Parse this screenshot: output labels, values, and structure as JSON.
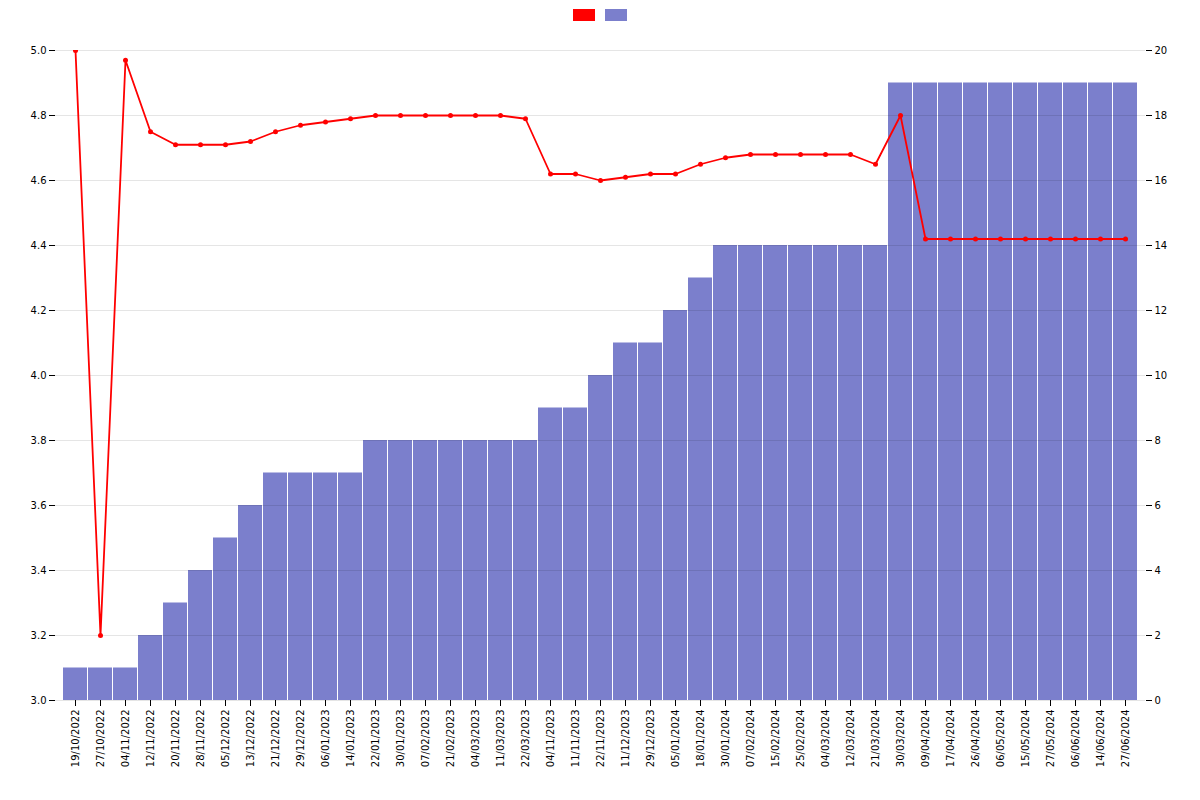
{
  "chart_data": {
    "type": "bar",
    "categories": [
      "19/10/2022",
      "27/10/2022",
      "04/11/2022",
      "12/11/2022",
      "20/11/2022",
      "28/11/2022",
      "05/12/2022",
      "13/12/2022",
      "21/12/2022",
      "29/12/2022",
      "06/01/2023",
      "14/01/2023",
      "22/01/2023",
      "30/01/2023",
      "07/02/2023",
      "21/02/2023",
      "04/03/2023",
      "11/03/2023",
      "22/03/2023",
      "04/11/2023",
      "11/11/2023",
      "22/11/2023",
      "11/12/2023",
      "29/12/2023",
      "05/01/2024",
      "18/01/2024",
      "30/01/2024",
      "07/02/2024",
      "15/02/2024",
      "25/02/2024",
      "04/03/2024",
      "12/03/2024",
      "21/03/2024",
      "30/03/2024",
      "09/04/2024",
      "17/04/2024",
      "26/04/2024",
      "06/05/2024",
      "15/05/2024",
      "27/05/2024",
      "06/06/2024",
      "14/06/2024",
      "27/06/2024"
    ],
    "series": [
      {
        "type": "line",
        "color": "#ff0000",
        "marker": "circle",
        "values": [
          5.0,
          3.2,
          4.97,
          4.75,
          4.71,
          4.71,
          4.71,
          4.72,
          4.75,
          4.77,
          4.78,
          4.79,
          4.8,
          4.8,
          4.8,
          4.8,
          4.8,
          4.8,
          4.79,
          4.62,
          4.62,
          4.6,
          4.61,
          4.62,
          4.62,
          4.65,
          4.67,
          4.68,
          4.68,
          4.68,
          4.68,
          4.68,
          4.65,
          4.8,
          4.42,
          4.42,
          4.42,
          4.42,
          4.42,
          4.42,
          4.42,
          4.42,
          4.42
        ]
      },
      {
        "type": "bar",
        "color": "#7b7fcc",
        "axis": "y2",
        "values": [
          1,
          1,
          1,
          2,
          3,
          4,
          5,
          6,
          7,
          7,
          7,
          7,
          8,
          8,
          8,
          8,
          8,
          8,
          8,
          9,
          9,
          10,
          11,
          11,
          12,
          13,
          14,
          14,
          14,
          14,
          14,
          14,
          14,
          19,
          19,
          19,
          19,
          19,
          19,
          19,
          19,
          19,
          19
        ]
      }
    ],
    "ylim": [
      3.0,
      5.0
    ],
    "yticks": [
      {
        "value": 3,
        "label": "3.0"
      },
      3.2,
      3.4,
      3.6,
      3.8,
      {
        "value": 4,
        "label": "4.0"
      },
      4.2,
      4.4,
      4.6,
      4.8,
      {
        "value": 5,
        "label": "5.0"
      }
    ],
    "y2lim": [
      0,
      20
    ],
    "y2ticks": [
      0,
      2,
      4,
      6,
      8,
      10,
      12,
      14,
      16,
      18,
      20
    ],
    "grid": true,
    "legend": "top"
  }
}
